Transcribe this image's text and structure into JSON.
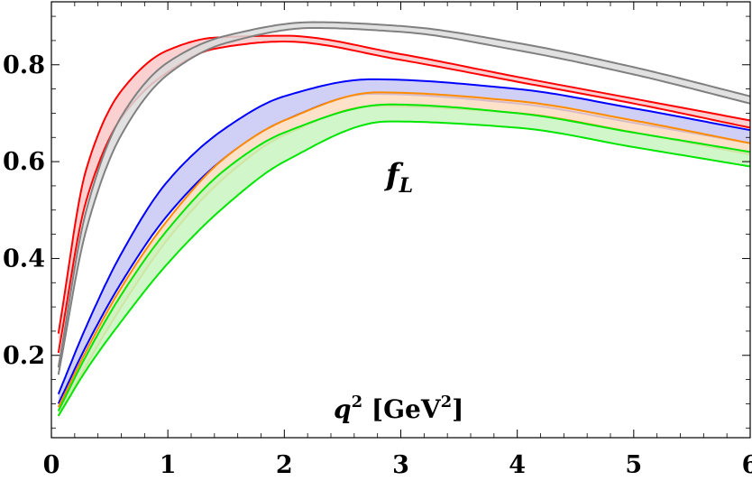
{
  "chart_data": {
    "type": "area",
    "annotations": {
      "var_main": "f",
      "var_sub": "L",
      "xlabel_q": "q",
      "xlabel_exp": "2",
      "xlabel_unit_open": " [GeV",
      "xlabel_unit_exp": "2",
      "xlabel_unit_close": "]"
    },
    "xlim": [
      0,
      6
    ],
    "ylim": [
      0.03,
      0.93
    ],
    "x_ticks": [
      0,
      1,
      2,
      3,
      4,
      5,
      6
    ],
    "x_tick_labels": [
      "0",
      "1",
      "2",
      "3",
      "4",
      "5",
      "6"
    ],
    "y_ticks": [
      0.2,
      0.4,
      0.6,
      0.8
    ],
    "y_tick_labels": [
      "0.2",
      "0.4",
      "0.6",
      "0.8"
    ],
    "grid": false,
    "series": [
      {
        "color": "#ff0000",
        "fill": "#f9c8c8",
        "x": [
          0.06,
          0.3,
          0.6,
          1.0,
          1.4,
          2.0,
          3.0,
          4.0,
          5.0,
          6.0
        ],
        "upper": [
          0.245,
          0.585,
          0.746,
          0.83,
          0.856,
          0.86,
          0.822,
          0.775,
          0.73,
          0.685
        ],
        "lower": [
          0.205,
          0.52,
          0.69,
          0.785,
          0.833,
          0.848,
          0.81,
          0.765,
          0.72,
          0.67
        ]
      },
      {
        "color": "#808080",
        "fill": "#dcdcdc",
        "x": [
          0.06,
          0.3,
          0.6,
          1.0,
          1.5,
          2.25,
          3.0,
          4.0,
          5.0,
          6.0
        ],
        "upper": [
          0.175,
          0.5,
          0.693,
          0.805,
          0.86,
          0.888,
          0.88,
          0.845,
          0.795,
          0.735
        ],
        "lower": [
          0.16,
          0.46,
          0.655,
          0.78,
          0.845,
          0.876,
          0.868,
          0.83,
          0.78,
          0.72
        ]
      },
      {
        "color": "#0000ff",
        "fill": "#c8c8f5",
        "x": [
          0.06,
          0.3,
          0.6,
          1.0,
          1.5,
          2.0,
          2.75,
          4.0,
          5.0,
          6.0
        ],
        "upper": [
          0.12,
          0.26,
          0.41,
          0.56,
          0.67,
          0.735,
          0.77,
          0.75,
          0.71,
          0.665
        ],
        "lower": [
          0.1,
          0.22,
          0.35,
          0.49,
          0.61,
          0.685,
          0.74,
          0.72,
          0.68,
          0.638
        ]
      },
      {
        "color": "#ff8c00",
        "fill": "#fddcbe",
        "x": [
          0.06,
          0.3,
          0.6,
          1.0,
          1.5,
          2.0,
          2.8,
          4.0,
          5.0,
          6.0
        ],
        "upper": [
          0.093,
          0.21,
          0.34,
          0.48,
          0.61,
          0.685,
          0.743,
          0.725,
          0.685,
          0.638
        ],
        "lower": [
          0.075,
          0.18,
          0.3,
          0.44,
          0.57,
          0.655,
          0.715,
          0.7,
          0.66,
          0.615
        ]
      },
      {
        "color": "#00e600",
        "fill": "#c8f5c0",
        "x": [
          0.06,
          0.3,
          0.6,
          1.0,
          1.5,
          2.0,
          2.9,
          4.0,
          5.0,
          6.0
        ],
        "upper": [
          0.085,
          0.2,
          0.325,
          0.46,
          0.585,
          0.66,
          0.718,
          0.7,
          0.66,
          0.62
        ],
        "lower": [
          0.075,
          0.17,
          0.27,
          0.39,
          0.51,
          0.6,
          0.683,
          0.67,
          0.63,
          0.59
        ]
      }
    ]
  }
}
